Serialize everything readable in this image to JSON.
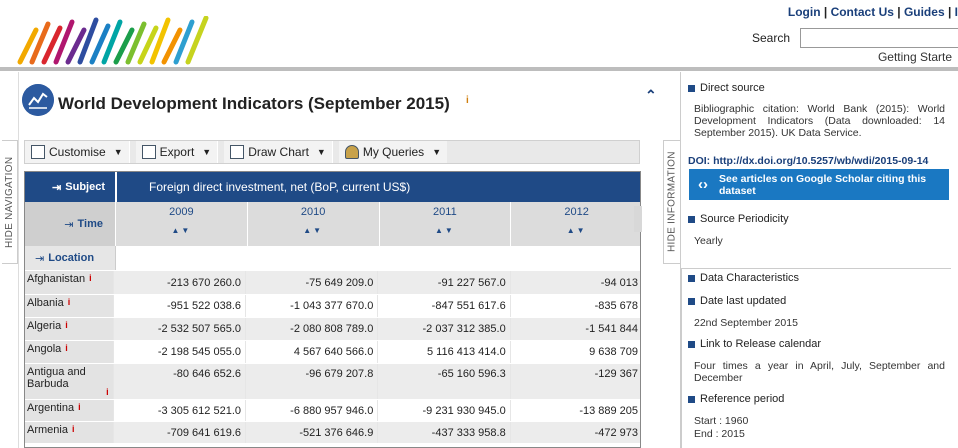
{
  "header": {
    "links": [
      "Login",
      "Contact Us",
      "Guides",
      "I"
    ],
    "search_label": "Search",
    "getting_started": "Getting Starte"
  },
  "dataset": {
    "title": "World Development Indicators (September 2015)",
    "info_badge": "i"
  },
  "toolbar": {
    "customise": "Customise",
    "export": "Export",
    "draw_chart": "Draw Chart",
    "my_queries": "My Queries"
  },
  "side_tabs": {
    "hide_navigation": "HIDE NAVIGATION",
    "hide_information": "HIDE INFORMATION"
  },
  "table": {
    "subject_label": "Subject",
    "subject_value": "Foreign direct investment, net (BoP, current US$)",
    "time_label": "Time",
    "location_label": "Location",
    "years": [
      "2009",
      "2010",
      "2011",
      "2012"
    ],
    "rows": [
      {
        "country": "Afghanistan",
        "values": [
          "-213 670 260.0",
          "-75 649 209.0",
          "-91 227 567.0",
          "-94 013"
        ]
      },
      {
        "country": "Albania",
        "values": [
          "-951 522 038.6",
          "-1 043 377 670.0",
          "-847 551 617.6",
          "-835 678"
        ]
      },
      {
        "country": "Algeria",
        "values": [
          "-2 532 507 565.0",
          "-2 080 808 789.0",
          "-2 037 312 385.0",
          "-1 541 844"
        ]
      },
      {
        "country": "Angola",
        "values": [
          "-2 198 545 055.0",
          "4 567 640 566.0",
          "5 116 413 414.0",
          "9 638 709"
        ]
      },
      {
        "country": "Antigua and Barbuda",
        "values": [
          "-80 646 652.6",
          "-96 679 207.8",
          "-65 160 596.3",
          "-129 367"
        ]
      },
      {
        "country": "Argentina",
        "values": [
          "-3 305 612 521.0",
          "-6 880 957 946.0",
          "-9 231 930 945.0",
          "-13 889 205"
        ]
      },
      {
        "country": "Armenia",
        "values": [
          "-709 641 619.6",
          "-521 376 646.9",
          "-437 333 958.8",
          "-472 973"
        ]
      }
    ]
  },
  "info_panel": {
    "direct_source": "Direct source",
    "citation": "Bibliographic citation: World Bank (2015): World Development Indicators (Data downloaded: 14 September 2015). UK Data Service.",
    "doi": "DOI: http://dx.doi.org/10.5257/wb/wdi/2015-09-14",
    "scholar": "See articles on Google Scholar citing this dataset",
    "source_periodicity": "Source Periodicity",
    "periodicity_value": "Yearly",
    "data_characteristics": "Data Characteristics",
    "date_last_updated": "Date last updated",
    "date_value": "22nd September 2015",
    "release_calendar": "Link to Release calendar",
    "release_value": "Four times a year in April, July, September and December",
    "reference_period": "Reference period",
    "start": "Start : 1960",
    "end": "End : 2015"
  }
}
